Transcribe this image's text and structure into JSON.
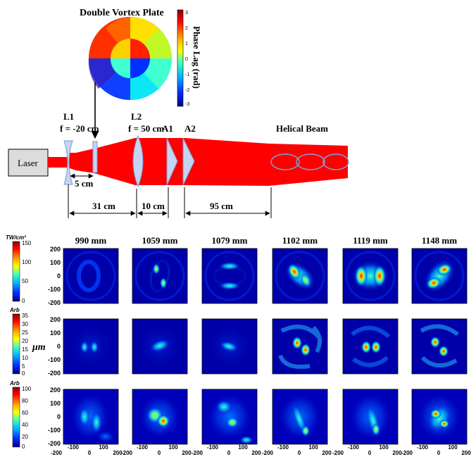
{
  "setup": {
    "plate_title": "Double Vortex Plate",
    "phase_label": "Phase Lag (rad)",
    "phase_ticks": [
      "3",
      "2",
      "1",
      "0",
      "-1",
      "-2",
      "-3"
    ],
    "laser": "Laser",
    "l1_name": "L1",
    "l1_focal": "f = -20 cm",
    "l2_name": "L2",
    "l2_focal": "f = 50 cm",
    "a1": "A1",
    "a2": "A2",
    "helical": "Helical Beam",
    "dist_5": "5 cm",
    "dist_31": "31 cm",
    "dist_10": "10 cm",
    "dist_95": "95 cm"
  },
  "grid": {
    "columns": [
      "990 mm",
      "1059 mm",
      "1079 mm",
      "1102 mm",
      "1119 mm",
      "1148 mm"
    ],
    "y_ticks": [
      "200",
      "100",
      "0",
      "-100",
      "-200"
    ],
    "x_ticks": [
      "-200",
      "-100",
      "0",
      "100",
      "200"
    ],
    "y_unit": "μm",
    "colorbars": [
      {
        "unit": "TW/cm²",
        "ticks": [
          "150",
          "100",
          "50",
          "0"
        ]
      },
      {
        "unit": "Arb",
        "ticks": [
          "35",
          "30",
          "25",
          "20",
          "15",
          "10",
          "5",
          "0"
        ]
      },
      {
        "unit": "Arb",
        "ticks": [
          "100",
          "80",
          "60",
          "40",
          "20",
          "0"
        ]
      }
    ]
  },
  "colors": {
    "beam": "#ff0000",
    "panel_bg": "#0000a8",
    "lens": "#c6d4ef"
  }
}
